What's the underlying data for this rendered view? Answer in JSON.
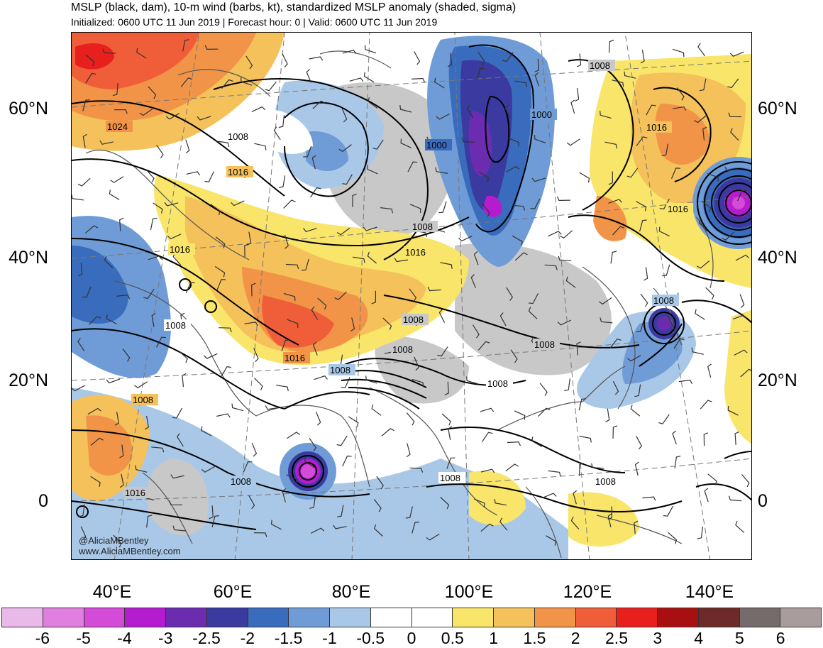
{
  "title": "MSLP (black, dam), 10-m wind (barbs, kt), standardized MSLP anomaly (shaded, sigma)",
  "subtitle": "Initialized: 0600 UTC 11 Jun 2019 | Forecast hour: 0 | Valid: 0600 UTC 11 Jun 2019",
  "credit": [
    "@AliciaMBentley",
    "www.AliciaMBentley.com"
  ],
  "latitude_labels": [
    "60°N",
    "40°N",
    "20°N",
    "0"
  ],
  "longitude_labels": [
    "40°E",
    "60°E",
    "80°E",
    "100°E",
    "120°E",
    "140°E"
  ],
  "contour_labels": [
    "1024",
    "1008",
    "1016",
    "1000",
    "1008",
    "1016",
    "1008",
    "1016",
    "1008",
    "1016",
    "1016",
    "1000",
    "1008",
    "1008",
    "1008",
    "1016",
    "1008",
    "1008",
    "1008",
    "1008",
    "1008",
    "1008",
    "1016",
    "1008"
  ],
  "colorbar": {
    "labels": [
      "-6",
      "-5",
      "-4",
      "-3",
      "-2.5",
      "-2",
      "-1.5",
      "-1",
      "-0.5",
      "0",
      "0.5",
      "1",
      "1.5",
      "2",
      "2.5",
      "3",
      "4",
      "5",
      "6"
    ],
    "colors": [
      "#e9b9e8",
      "#e17fe0",
      "#d34bd6",
      "#b51ccf",
      "#6b2cb0",
      "#3a3aa0",
      "#3a6cbd",
      "#6f9cd6",
      "#a9c8e8",
      "#ffffff",
      "#ffffff",
      "#f9e56a",
      "#f5c15a",
      "#f19448",
      "#ef5e39",
      "#e8201d",
      "#a80f10",
      "#6e2a28",
      "#766b6b",
      "#a89c9c"
    ]
  },
  "colors": {
    "land_border": "#555555",
    "contour": "#000000",
    "neutral_gray": "#c8c8c8"
  }
}
